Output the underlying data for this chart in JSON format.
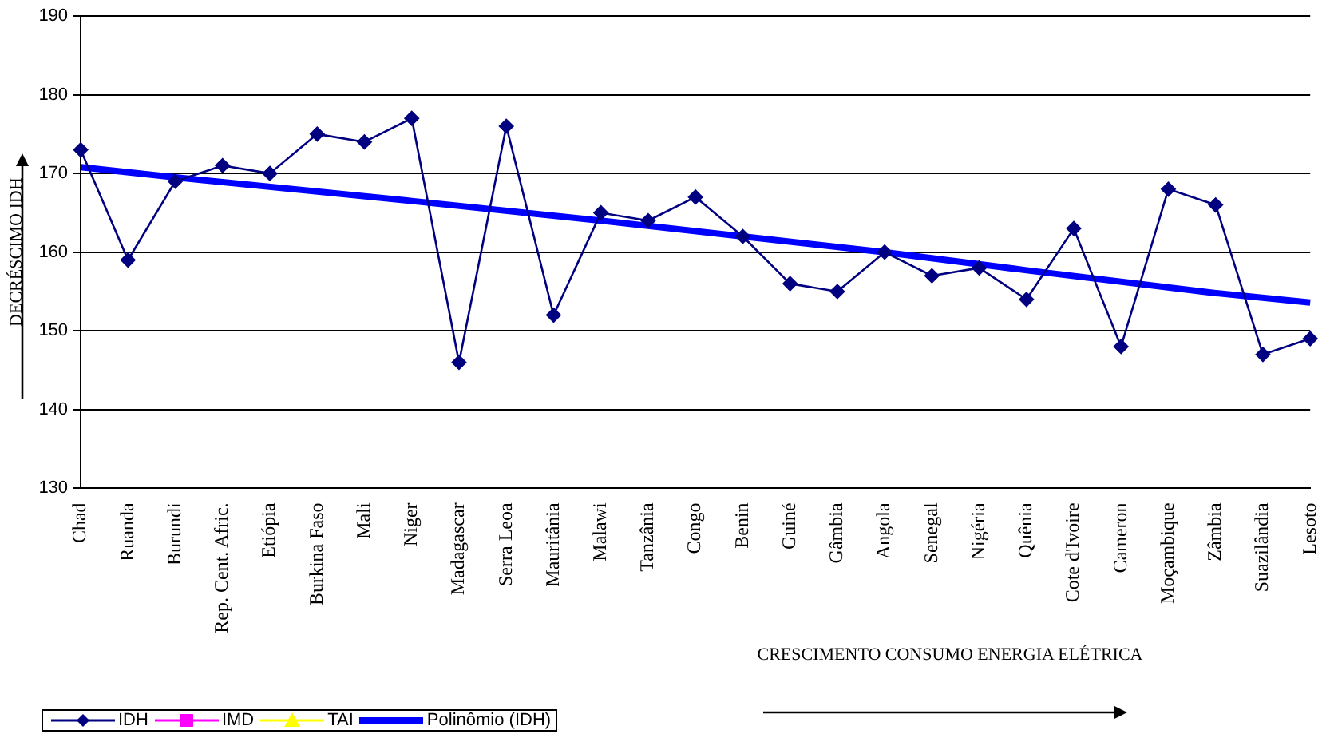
{
  "chart_data": {
    "type": "line",
    "ylabel": "DECRÉSCIMO IDH",
    "xlabel": "CRESCIMENTO CONSUMO ENERGIA ELÉTRICA",
    "categories": [
      "Chad",
      "Ruanda",
      "Burundi",
      "Rep. Cent. Afric.",
      "Etiópia",
      "Burkina Faso",
      "Mali",
      "Niger",
      "Madagascar",
      "Serra Leoa",
      "Mauritânia",
      "Malawi",
      "Tanzânia",
      "Congo",
      "Benin",
      "Guiné",
      "Gâmbia",
      "Angola",
      "Senegal",
      "Nigéria",
      "Quênia",
      "Cote d'Ivoire",
      "Cameron",
      "Moçambique",
      "Zâmbia",
      "Suazilândia",
      "Lesoto"
    ],
    "series": [
      {
        "name": "IDH",
        "color": "#000080",
        "marker": "diamond",
        "values": [
          173,
          159,
          169,
          171,
          170,
          175,
          174,
          177,
          146,
          176,
          152,
          165,
          164,
          167,
          162,
          156,
          155,
          160,
          157,
          158,
          154,
          163,
          148,
          168,
          166,
          147,
          149
        ]
      },
      {
        "name": "IMD",
        "color": "#ff00ff",
        "marker": "square",
        "values": [
          null,
          null,
          null,
          null,
          null,
          null,
          null,
          null,
          null,
          null,
          null,
          null,
          null,
          null,
          null,
          null,
          null,
          null,
          null,
          null,
          null,
          null,
          null,
          null,
          null,
          null,
          null
        ]
      },
      {
        "name": "TAI",
        "color": "#ffff00",
        "marker": "triangle",
        "values": [
          null,
          null,
          null,
          null,
          null,
          null,
          null,
          null,
          null,
          null,
          null,
          null,
          null,
          null,
          null,
          null,
          null,
          null,
          null,
          null,
          null,
          null,
          null,
          null,
          null,
          null,
          null
        ]
      },
      {
        "name": "Polinômio (IDH)",
        "color": "#0000ff",
        "marker": "none",
        "values": [
          170.8,
          null,
          169.5,
          null,
          null,
          null,
          null,
          166.5,
          null,
          null,
          null,
          164,
          null,
          null,
          162,
          null,
          null,
          160,
          null,
          null,
          157.7,
          null,
          null,
          null,
          154.8,
          null,
          153.6
        ]
      }
    ],
    "ylim": [
      130,
      190
    ],
    "yticks": [
      130,
      140,
      150,
      160,
      170,
      180,
      190
    ],
    "grid": "y",
    "legend": "bottom left"
  }
}
